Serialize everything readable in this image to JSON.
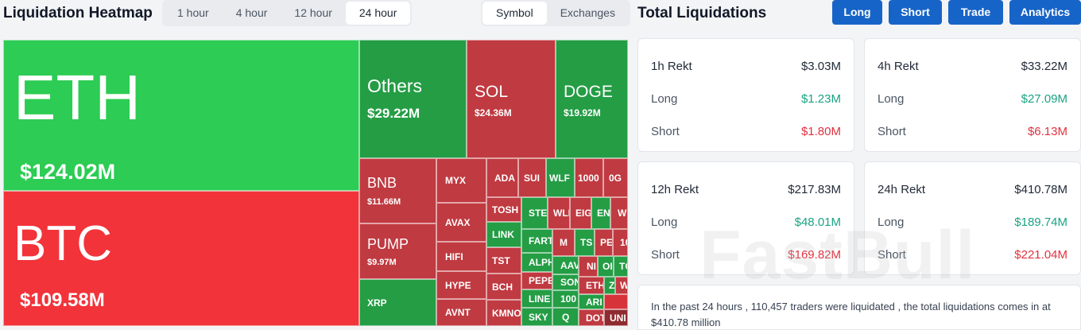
{
  "header": {
    "title": "Liquidation Heatmap",
    "time_options": [
      "1 hour",
      "4 hour",
      "12 hour",
      "24 hour"
    ],
    "time_selected": "24 hour",
    "view_options": [
      "Symbol",
      "Exchanges"
    ],
    "view_selected": "Symbol"
  },
  "heatmap": {
    "big": [
      {
        "symbol": "ETH",
        "amount": "$124.02M",
        "color": "#2dcc54"
      },
      {
        "symbol": "BTC",
        "amount": "$109.58M",
        "color": "#f2333a"
      },
      {
        "symbol": "Others",
        "amount": "$29.22M",
        "color": "#249d45"
      },
      {
        "symbol": "SOL",
        "amount": "$24.36M",
        "color": "#c03a41"
      },
      {
        "symbol": "DOGE",
        "amount": "$19.92M",
        "color": "#249d45"
      },
      {
        "symbol": "BNB",
        "amount": "$11.66M",
        "color": "#c03a41"
      },
      {
        "symbol": "PUMP",
        "amount": "$9.97M",
        "color": "#c03a41"
      }
    ],
    "small": [
      "XRP",
      "MYX",
      "AVAX",
      "HIFI",
      "HYPE",
      "AVNT",
      "ADA",
      "SUI",
      "WLF",
      "1000",
      "0G",
      "TOSH",
      "LINK",
      "TST",
      "BCH",
      "KMNO",
      "STE",
      "WLI",
      "EIG",
      "EN",
      "W",
      "FART",
      "M",
      "TS",
      "PE",
      "10",
      "ALPH",
      "PEPE",
      "LINE",
      "SKY",
      "AAV",
      "SON",
      "100",
      "Q",
      "NI",
      "OI",
      "TC",
      "ETH",
      "Z",
      "W",
      "ARI",
      "DOT",
      "UNI"
    ]
  },
  "panel": {
    "title": "Total Liquidations",
    "buttons": [
      "Long",
      "Short",
      "Trade",
      "Analytics"
    ],
    "cards": [
      {
        "label": "1h Rekt",
        "total": "$3.03M",
        "long_label": "Long",
        "long": "$1.23M",
        "short_label": "Short",
        "short": "$1.80M"
      },
      {
        "label": "4h Rekt",
        "total": "$33.22M",
        "long_label": "Long",
        "long": "$27.09M",
        "short_label": "Short",
        "short": "$6.13M"
      },
      {
        "label": "12h Rekt",
        "total": "$217.83M",
        "long_label": "Long",
        "long": "$48.01M",
        "short_label": "Short",
        "short": "$169.82M"
      },
      {
        "label": "24h Rekt",
        "total": "$410.78M",
        "long_label": "Long",
        "long": "$189.74M",
        "short_label": "Short",
        "short": "$221.04M"
      }
    ],
    "summary": "In the past 24 hours , 110,457 traders were liquidated , the total liquidations comes in at $410.78 million"
  },
  "watermark": "FastBull",
  "colors": {
    "accent": "#1764c8",
    "long": "#1aa383",
    "short": "#e0323f"
  }
}
